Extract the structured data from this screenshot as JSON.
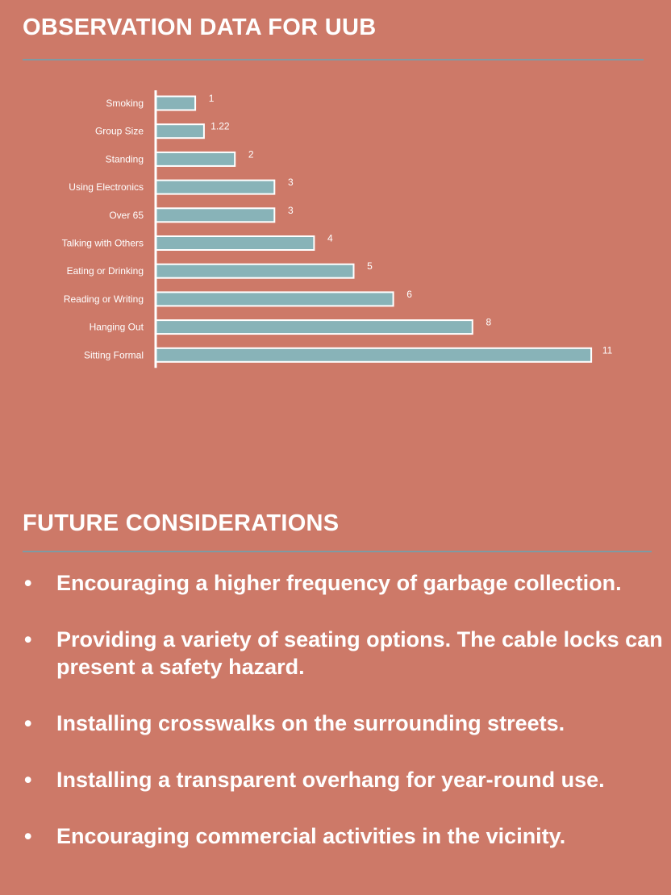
{
  "section1": {
    "title": "OBSERVATION DATA FOR UUB"
  },
  "section2": {
    "title": "FUTURE CONSIDERATIONS"
  },
  "bullet_glyph": "•",
  "considerations": [
    "Encouraging a higher frequency of garbage collection.",
    "Providing a variety of seating options. The cable locks can present a safety hazard.",
    "Installing crosswalks on the surrounding streets.",
    "Installing a transparent overhang for year-round use.",
    "Encouraging commercial activities in the vicinity."
  ],
  "colors": {
    "background": "#cd7968",
    "bar_fill": "#88b3b8",
    "bar_stroke": "#ffffff",
    "rule": "#7f9aa3",
    "text": "#ffffff"
  },
  "chart_data": {
    "type": "bar",
    "orientation": "horizontal",
    "categories": [
      "Smoking",
      "Group Size",
      "Standing",
      "Using Electronics",
      "Over 65",
      "Talking with Others",
      "Eating or Drinking",
      "Reading or Writing",
      "Hanging Out",
      "Sitting Formal"
    ],
    "values": [
      1,
      1.22,
      2,
      3,
      3,
      4,
      5,
      6,
      8,
      11
    ],
    "value_labels": [
      "1",
      "1.22",
      "2",
      "3",
      "3",
      "4",
      "5",
      "6",
      "8",
      "11"
    ],
    "xlim": [
      0,
      11
    ],
    "grid": false,
    "legend": "none",
    "title": "",
    "xlabel": "",
    "ylabel": ""
  }
}
